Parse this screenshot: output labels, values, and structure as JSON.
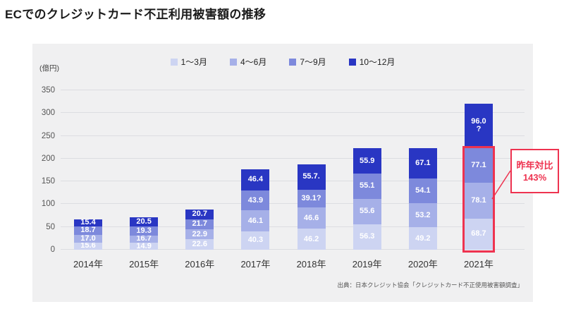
{
  "page": {
    "title": "ECでのクレジットカード不正利用被害額の推移"
  },
  "chart_data": {
    "type": "bar",
    "stacked": true,
    "title": "ECでのクレジットカード不正利用被害額の推移",
    "unit_label": "(億円)",
    "xlabel": "",
    "ylabel": "億円",
    "ylim": [
      0,
      350
    ],
    "ytick_step": 50,
    "grid": true,
    "legend_position": "top-center",
    "categories": [
      "2014年",
      "2015年",
      "2016年",
      "2017年",
      "2018年",
      "2019年",
      "2020年",
      "2021年"
    ],
    "series": [
      {
        "name": "1～3月",
        "color": "#cdd4f2",
        "values": [
          15.6,
          14.9,
          22.6,
          40.3,
          46.2,
          56.3,
          49.2,
          68.7
        ]
      },
      {
        "name": "4～6月",
        "color": "#a6b0e8",
        "values": [
          17.0,
          16.7,
          22.9,
          46.1,
          46.6,
          55.6,
          53.2,
          78.1
        ]
      },
      {
        "name": "7～9月",
        "color": "#7d89dc",
        "values": [
          18.7,
          19.3,
          21.7,
          43.9,
          39.1,
          55.1,
          54.1,
          77.1
        ],
        "label_overrides": {
          "4": "39.1?"
        }
      },
      {
        "name": "10～12月",
        "color": "#2936c3",
        "values": [
          15.4,
          20.5,
          20.7,
          46.4,
          55.7,
          55.9,
          67.1,
          96.0
        ],
        "label_overrides": {
          "4": "55.7.",
          "7": "96.0\n?"
        }
      }
    ]
  },
  "annotation": {
    "line1": "昨年対比",
    "line2": "143%",
    "accent_color": "#ee3350",
    "highlight_category": "2021年",
    "highlight_series": [
      "1～3月",
      "4～6月",
      "7～9月"
    ]
  },
  "source": "出典：日本クレジット協会「クレジットカード不正使用被害額調査」"
}
